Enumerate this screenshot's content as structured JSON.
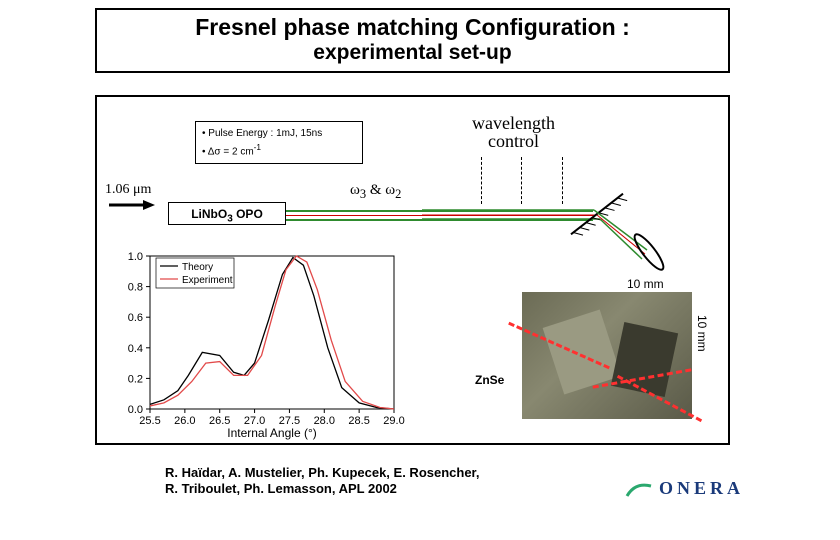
{
  "title": {
    "main": "Fresnel phase matching Configuration :",
    "sub": "experimental set-up"
  },
  "pulse_box": {
    "line1": "• Pulse Energy : 1mJ, 15ns",
    "line2_prefix": "• Δσ = 2 cm",
    "line2_sup": "-1"
  },
  "wavelength_control": {
    "line1": "wavelength",
    "line2": "control"
  },
  "pump": {
    "label_prefix": "1.06 ",
    "label_unit": "μm",
    "arrow_color": "#000000"
  },
  "opo": {
    "label_html": "LiNbO",
    "label_sub": "3",
    "label_tail": " OPO"
  },
  "omega": {
    "w3": "ω",
    "sub3": "3",
    "amp": " & ",
    "w2": "ω",
    "sub2": "2"
  },
  "beams": {
    "green_color": "#2e8b2e",
    "red_color": "#cc0000"
  },
  "chart": {
    "type": "line",
    "xlim": [
      25.5,
      29.0
    ],
    "xticks": [
      25.5,
      26.0,
      26.5,
      27.0,
      27.5,
      28.0,
      28.5,
      29.0
    ],
    "ylim": [
      0.0,
      1.0
    ],
    "yticks": [
      0.0,
      0.2,
      0.4,
      0.6,
      0.8,
      1.0
    ],
    "xlabel": "Internal Angle (°)",
    "legend": [
      "Theory",
      "Experiment"
    ],
    "series": {
      "theory": {
        "color": "#000000",
        "x": [
          25.5,
          25.7,
          25.9,
          26.05,
          26.25,
          26.5,
          26.7,
          26.85,
          27.0,
          27.2,
          27.4,
          27.55,
          27.7,
          27.85,
          28.05,
          28.25,
          28.5,
          28.75,
          29.0
        ],
        "y": [
          0.03,
          0.06,
          0.12,
          0.22,
          0.37,
          0.35,
          0.24,
          0.22,
          0.3,
          0.58,
          0.88,
          0.99,
          0.94,
          0.74,
          0.4,
          0.14,
          0.04,
          0.01,
          0.0
        ]
      },
      "experiment": {
        "color": "#e24a4a",
        "x": [
          25.5,
          25.7,
          25.9,
          26.1,
          26.3,
          26.5,
          26.7,
          26.9,
          27.1,
          27.3,
          27.45,
          27.6,
          27.75,
          27.9,
          28.1,
          28.3,
          28.55,
          28.8,
          29.0
        ],
        "y": [
          0.02,
          0.04,
          0.09,
          0.18,
          0.3,
          0.31,
          0.22,
          0.22,
          0.35,
          0.68,
          0.91,
          1.0,
          0.96,
          0.78,
          0.45,
          0.18,
          0.05,
          0.01,
          0.0
        ]
      }
    },
    "axis_color": "#000000",
    "fontsize": 11
  },
  "photo": {
    "width_label": "10 mm",
    "height_label": "10 mm",
    "material": "ZnSe",
    "beam_color": "#ff3030"
  },
  "citation": {
    "line1": "R. Haïdar, A. Mustelier, Ph. Kupecek, E. Rosencher,",
    "line2": "R. Triboulet, Ph. Lemasson, APL 2002"
  },
  "logo": {
    "text": "ONERA",
    "color": "#1a3a7a",
    "swoosh_color": "#2aa86e"
  }
}
